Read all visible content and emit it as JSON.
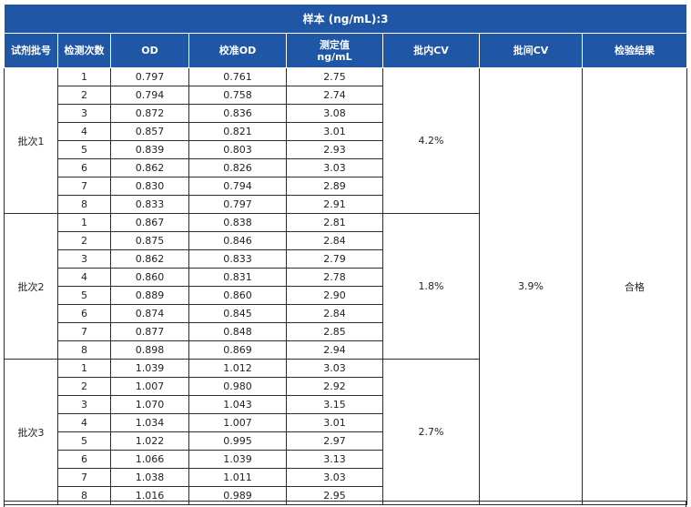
{
  "title": "样本 (ng/mL):3",
  "headers": {
    "batch": "试剂批号",
    "count": "检测次数",
    "od": "OD",
    "cal_od": "校准OD",
    "measured_line1": "测定值",
    "measured_line2": "ng/mL",
    "intra_cv": "批内CV",
    "inter_cv": "批间CV",
    "result": "检验结果"
  },
  "batches": [
    {
      "name": "批次1",
      "intra_cv": "4.2%",
      "rows": [
        {
          "n": "1",
          "od": "0.797",
          "cal": "0.761",
          "val": "2.75"
        },
        {
          "n": "2",
          "od": "0.794",
          "cal": "0.758",
          "val": "2.74"
        },
        {
          "n": "3",
          "od": "0.872",
          "cal": "0.836",
          "val": "3.08"
        },
        {
          "n": "4",
          "od": "0.857",
          "cal": "0.821",
          "val": "3.01"
        },
        {
          "n": "5",
          "od": "0.839",
          "cal": "0.803",
          "val": "2.93"
        },
        {
          "n": "6",
          "od": "0.862",
          "cal": "0.826",
          "val": "3.03"
        },
        {
          "n": "7",
          "od": "0.830",
          "cal": "0.794",
          "val": "2.89"
        },
        {
          "n": "8",
          "od": "0.833",
          "cal": "0.797",
          "val": "2.91"
        }
      ]
    },
    {
      "name": "批次2",
      "intra_cv": "1.8%",
      "rows": [
        {
          "n": "1",
          "od": "0.867",
          "cal": "0.838",
          "val": "2.81"
        },
        {
          "n": "2",
          "od": "0.875",
          "cal": "0.846",
          "val": "2.84"
        },
        {
          "n": "3",
          "od": "0.862",
          "cal": "0.833",
          "val": "2.79"
        },
        {
          "n": "4",
          "od": "0.860",
          "cal": "0.831",
          "val": "2.78"
        },
        {
          "n": "5",
          "od": "0.889",
          "cal": "0.860",
          "val": "2.90"
        },
        {
          "n": "6",
          "od": "0.874",
          "cal": "0.845",
          "val": "2.84"
        },
        {
          "n": "7",
          "od": "0.877",
          "cal": "0.848",
          "val": "2.85"
        },
        {
          "n": "8",
          "od": "0.898",
          "cal": "0.869",
          "val": "2.94"
        }
      ]
    },
    {
      "name": "批次3",
      "intra_cv": "2.7%",
      "rows": [
        {
          "n": "1",
          "od": "1.039",
          "cal": "1.012",
          "val": "3.03"
        },
        {
          "n": "2",
          "od": "1.007",
          "cal": "0.980",
          "val": "2.92"
        },
        {
          "n": "3",
          "od": "1.070",
          "cal": "1.043",
          "val": "3.15"
        },
        {
          "n": "4",
          "od": "1.034",
          "cal": "1.007",
          "val": "3.01"
        },
        {
          "n": "5",
          "od": "1.022",
          "cal": "0.995",
          "val": "2.97"
        },
        {
          "n": "6",
          "od": "1.066",
          "cal": "1.039",
          "val": "3.13"
        },
        {
          "n": "7",
          "od": "1.038",
          "cal": "1.011",
          "val": "3.03"
        },
        {
          "n": "8",
          "od": "1.016",
          "cal": "0.989",
          "val": "2.95"
        }
      ]
    }
  ],
  "inter_cv": "3.9%",
  "result": "合格",
  "colors": {
    "header_bg": "#1f56a6",
    "header_text": "#ffffff",
    "border": "#2b2b2b"
  }
}
